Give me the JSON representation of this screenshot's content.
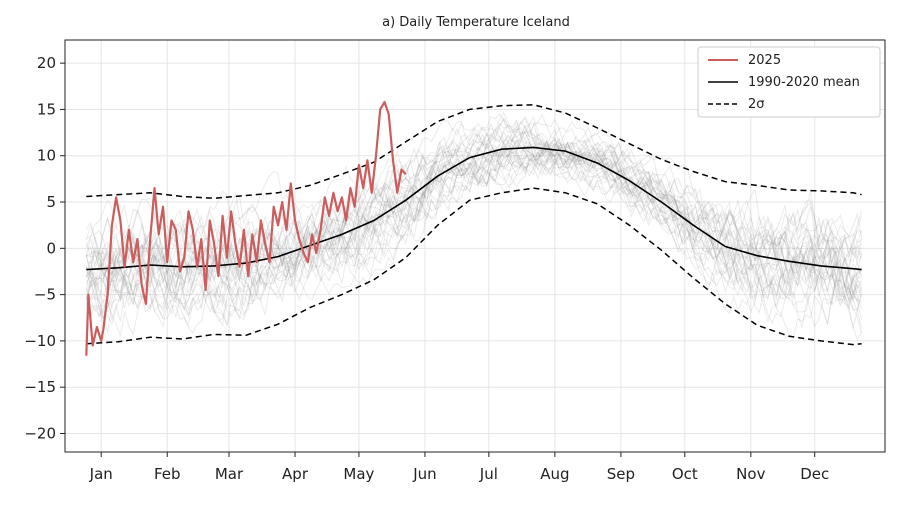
{
  "chart_data": {
    "type": "line",
    "title": "a) Daily Temperature Iceland",
    "xlabel": "",
    "ylabel": "",
    "xlim": [
      -10,
      375
    ],
    "ylim": [
      -22,
      22.5
    ],
    "grid": true,
    "legend_position": "top-right",
    "x_ticks": [
      {
        "label": "Jan",
        "day": 7
      },
      {
        "label": "Feb",
        "day": 38
      },
      {
        "label": "Mar",
        "day": 67
      },
      {
        "label": "Apr",
        "day": 98
      },
      {
        "label": "May",
        "day": 128
      },
      {
        "label": "Jun",
        "day": 159
      },
      {
        "label": "Jul",
        "day": 189
      },
      {
        "label": "Aug",
        "day": 220
      },
      {
        "label": "Sep",
        "day": 251
      },
      {
        "label": "Oct",
        "day": 281
      },
      {
        "label": "Nov",
        "day": 312
      },
      {
        "label": "Dec",
        "day": 342
      }
    ],
    "y_ticks": [
      20,
      15,
      10,
      5,
      0,
      -5,
      -10,
      -15,
      -20
    ],
    "legend": [
      {
        "label": "2025",
        "style": "solid",
        "color": "#cd5c5c"
      },
      {
        "label": "1990-2020 mean",
        "style": "solid",
        "color": "#000000"
      },
      {
        "label": "2σ",
        "style": "dashed",
        "color": "#000000"
      }
    ],
    "series": [
      {
        "name": "1990-2020 mean",
        "color": "#000000",
        "x": [
          0,
          15,
          30,
          45,
          60,
          75,
          90,
          105,
          120,
          135,
          150,
          165,
          180,
          195,
          210,
          225,
          240,
          255,
          270,
          285,
          300,
          315,
          330,
          345,
          360,
          364
        ],
        "y": [
          -2.3,
          -2.1,
          -1.8,
          -2.0,
          -1.9,
          -1.6,
          -0.9,
          0.3,
          1.5,
          3.0,
          5.2,
          7.8,
          9.8,
          10.7,
          10.9,
          10.5,
          9.2,
          7.3,
          5.0,
          2.5,
          0.2,
          -0.8,
          -1.4,
          -1.9,
          -2.2,
          -2.3
        ]
      },
      {
        "name": "upper 2σ",
        "color": "#000000",
        "x": [
          0,
          15,
          30,
          45,
          60,
          75,
          90,
          105,
          120,
          135,
          150,
          165,
          180,
          195,
          210,
          225,
          240,
          255,
          270,
          285,
          300,
          315,
          330,
          345,
          360,
          364
        ],
        "y": [
          5.6,
          5.8,
          6.0,
          5.6,
          5.4,
          5.7,
          6.0,
          6.8,
          8.0,
          9.3,
          11.5,
          13.7,
          15.0,
          15.4,
          15.5,
          14.6,
          13.0,
          11.3,
          9.6,
          8.3,
          7.2,
          6.8,
          6.3,
          6.2,
          6.0,
          5.8
        ]
      },
      {
        "name": "lower 2σ",
        "color": "#000000",
        "x": [
          0,
          15,
          30,
          45,
          60,
          75,
          90,
          105,
          120,
          135,
          150,
          165,
          180,
          195,
          210,
          225,
          240,
          255,
          270,
          285,
          300,
          315,
          330,
          345,
          360,
          364
        ],
        "y": [
          -10.3,
          -10.1,
          -9.6,
          -9.8,
          -9.3,
          -9.4,
          -8.2,
          -6.4,
          -5.0,
          -3.4,
          -1.0,
          2.5,
          5.2,
          6.0,
          6.5,
          6.0,
          4.8,
          2.5,
          -0.2,
          -3.2,
          -6.0,
          -8.3,
          -9.5,
          -10.0,
          -10.4,
          -10.3
        ]
      },
      {
        "name": "2025",
        "color": "#cd5c5c",
        "x": [
          0,
          1,
          3,
          5,
          7,
          8,
          10,
          12,
          14,
          16,
          18,
          20,
          22,
          24,
          26,
          28,
          30,
          32,
          34,
          36,
          38,
          40,
          42,
          44,
          46,
          48,
          50,
          52,
          54,
          56,
          58,
          60,
          62,
          64,
          66,
          68,
          70,
          72,
          74,
          76,
          78,
          80,
          82,
          84,
          86,
          88,
          90,
          92,
          94,
          96,
          98,
          100,
          102,
          104,
          106,
          108,
          110,
          112,
          114,
          116,
          118,
          120,
          122,
          124,
          126,
          128,
          130,
          132,
          134,
          136,
          138,
          140,
          142,
          144,
          146,
          148,
          150
        ],
        "y": [
          -11.6,
          -5.0,
          -10.5,
          -8.5,
          -10.0,
          -8.8,
          -5.0,
          2.5,
          5.5,
          3.0,
          -2.0,
          2.0,
          -1.5,
          1.0,
          -4.0,
          -6.0,
          1.0,
          6.5,
          1.5,
          4.5,
          -1.5,
          3.0,
          2.0,
          -2.5,
          -1.0,
          4.0,
          2.0,
          -2.0,
          1.0,
          -4.5,
          3.0,
          0.5,
          -3.0,
          3.5,
          -1.0,
          4.0,
          0.5,
          -2.0,
          2.0,
          -3.0,
          1.5,
          -1.5,
          3.0,
          0.5,
          -1.5,
          4.5,
          2.5,
          5.0,
          2.0,
          7.0,
          3.0,
          1.0,
          -0.5,
          -1.5,
          1.5,
          -0.5,
          2.0,
          5.5,
          3.5,
          6.0,
          4.0,
          5.5,
          3.0,
          6.5,
          4.5,
          9.0,
          6.5,
          9.5,
          6.0,
          10.0,
          15.0,
          15.8,
          14.5,
          9.5,
          6.0,
          8.5,
          8.0
        ]
      }
    ]
  }
}
